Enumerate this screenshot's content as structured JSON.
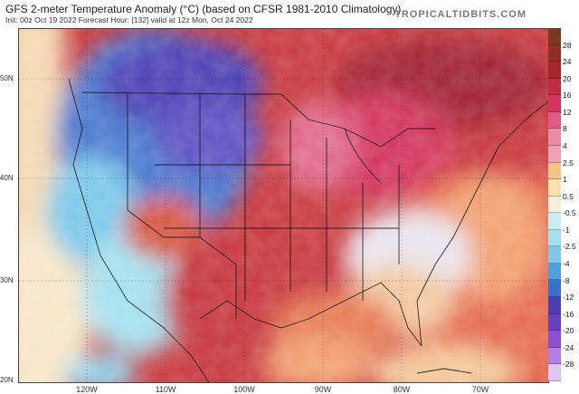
{
  "header": {
    "title": "GFS 2-meter Temperature Anomaly (°C) (based on CFSR 1981-2010 Climatology)",
    "subtitle": "Init: 00z Oct 19 2022   Forecast Hour: [132]   valid at 12z Mon, Oct 24 2022",
    "credit": "TROPICALTIDBITS.COM"
  },
  "map": {
    "latitude_labels": [
      "50N",
      "40N",
      "30N",
      "20N"
    ],
    "longitude_labels": [
      "120W",
      "110W",
      "100W",
      "90W",
      "80W",
      "70W"
    ]
  },
  "colorbar": {
    "labels": [
      "28",
      "24",
      "20",
      "16",
      "12",
      "8",
      "4",
      "2.5",
      "1",
      "0.5",
      "-0.5",
      "-1",
      "-2.5",
      "-4",
      "-8",
      "-12",
      "-16",
      "-20",
      "-24",
      "-28"
    ],
    "colors": [
      "#7a3b22",
      "#8f2f26",
      "#a7252f",
      "#c12a3f",
      "#d3355c",
      "#e05c86",
      "#ea8aa9",
      "#f0a2b5",
      "#f4c486",
      "#f8e2b2",
      "#f5f0dc",
      "#c9eef0",
      "#a4e0ef",
      "#7cc8ea",
      "#4e9fdc",
      "#3a6fcb",
      "#4b3fb4",
      "#6a3fbf",
      "#8d4fd0",
      "#b37fe3",
      "#e0c7f2"
    ]
  }
}
